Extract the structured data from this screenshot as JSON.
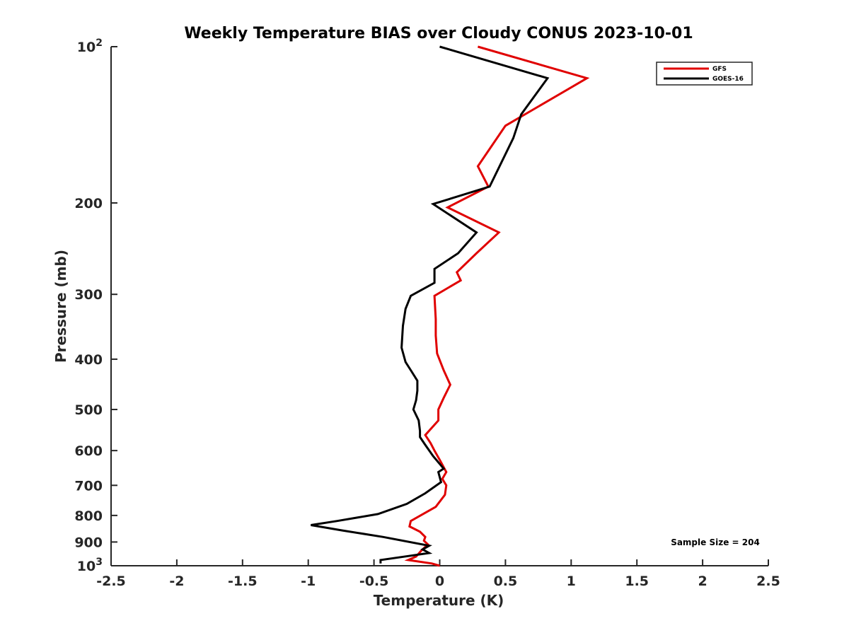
{
  "chart_data": {
    "type": "line",
    "title": "Weekly Temperature BIAS over Cloudy CONUS 2023-10-01",
    "xlabel": "Temperature (K)",
    "ylabel": "Pressure (mb)",
    "xlim": [
      -2.5,
      2.5
    ],
    "ylim": [
      100,
      1000
    ],
    "y_scale": "log",
    "y_reversed": true,
    "x_ticks": [
      -2.5,
      -2,
      -1.5,
      -1,
      -0.5,
      0,
      0.5,
      1,
      1.5,
      2,
      2.5
    ],
    "x_tick_labels": [
      "-2.5",
      "-2",
      "-1.5",
      "-1",
      "-0.5",
      "0",
      "0.5",
      "1",
      "1.5",
      "2",
      "2.5"
    ],
    "y_ticks": [
      100,
      200,
      300,
      400,
      500,
      600,
      700,
      800,
      900,
      1000
    ],
    "y_tick_labels": [
      {
        "base": "10",
        "exp": "2"
      },
      {
        "base": "200",
        "exp": ""
      },
      {
        "base": "300",
        "exp": ""
      },
      {
        "base": "400",
        "exp": ""
      },
      {
        "base": "500",
        "exp": ""
      },
      {
        "base": "600",
        "exp": ""
      },
      {
        "base": "700",
        "exp": ""
      },
      {
        "base": "800",
        "exp": ""
      },
      {
        "base": "900",
        "exp": ""
      },
      {
        "base": "10",
        "exp": "3"
      }
    ],
    "grid": false,
    "legend_position": "top-right",
    "annotation": "Sample Size = 204",
    "series": [
      {
        "name": "GFS",
        "color": "#e00000",
        "points": [
          [
            0.29,
            100
          ],
          [
            1.12,
            115
          ],
          [
            0.5,
            142
          ],
          [
            0.29,
            170
          ],
          [
            0.37,
            186
          ],
          [
            0.06,
            204
          ],
          [
            0.45,
            228
          ],
          [
            0.28,
            250
          ],
          [
            0.13,
            272
          ],
          [
            0.16,
            282
          ],
          [
            -0.04,
            302
          ],
          [
            -0.03,
            335
          ],
          [
            -0.03,
            360
          ],
          [
            -0.02,
            390
          ],
          [
            0.03,
            420
          ],
          [
            0.08,
            448
          ],
          [
            0.03,
            475
          ],
          [
            -0.01,
            500
          ],
          [
            -0.01,
            525
          ],
          [
            -0.11,
            560
          ],
          [
            -0.07,
            580
          ],
          [
            -0.04,
            600
          ],
          [
            0.0,
            625
          ],
          [
            0.05,
            660
          ],
          [
            0.02,
            680
          ],
          [
            0.05,
            700
          ],
          [
            0.04,
            730
          ],
          [
            -0.03,
            770
          ],
          [
            -0.22,
            820
          ],
          [
            -0.23,
            840
          ],
          [
            -0.15,
            860
          ],
          [
            -0.11,
            880
          ],
          [
            -0.12,
            895
          ],
          [
            -0.09,
            910
          ],
          [
            -0.14,
            935
          ],
          [
            -0.18,
            960
          ],
          [
            -0.24,
            975
          ],
          [
            -0.06,
            990
          ],
          [
            0.0,
            1000
          ]
        ]
      },
      {
        "name": "GOES-16",
        "color": "#000000",
        "points": [
          [
            0.0,
            100
          ],
          [
            0.82,
            115
          ],
          [
            0.62,
            135
          ],
          [
            0.56,
            150
          ],
          [
            0.38,
            186
          ],
          [
            -0.05,
            201
          ],
          [
            0.28,
            228
          ],
          [
            0.14,
            250
          ],
          [
            -0.04,
            268
          ],
          [
            -0.04,
            285
          ],
          [
            -0.22,
            302
          ],
          [
            -0.26,
            320
          ],
          [
            -0.28,
            345
          ],
          [
            -0.29,
            380
          ],
          [
            -0.26,
            405
          ],
          [
            -0.22,
            420
          ],
          [
            -0.17,
            440
          ],
          [
            -0.17,
            460
          ],
          [
            -0.18,
            480
          ],
          [
            -0.2,
            500
          ],
          [
            -0.16,
            525
          ],
          [
            -0.15,
            550
          ],
          [
            -0.15,
            565
          ],
          [
            -0.11,
            585
          ],
          [
            -0.05,
            615
          ],
          [
            0.03,
            650
          ],
          [
            -0.01,
            660
          ],
          [
            0.01,
            690
          ],
          [
            -0.11,
            725
          ],
          [
            -0.25,
            760
          ],
          [
            -0.47,
            795
          ],
          [
            -0.78,
            820
          ],
          [
            -0.98,
            835
          ],
          [
            -0.74,
            855
          ],
          [
            -0.43,
            880
          ],
          [
            -0.08,
            915
          ],
          [
            -0.13,
            930
          ],
          [
            -0.08,
            945
          ],
          [
            -0.24,
            958
          ],
          [
            -0.45,
            975
          ],
          [
            -0.45,
            990
          ]
        ]
      }
    ]
  }
}
